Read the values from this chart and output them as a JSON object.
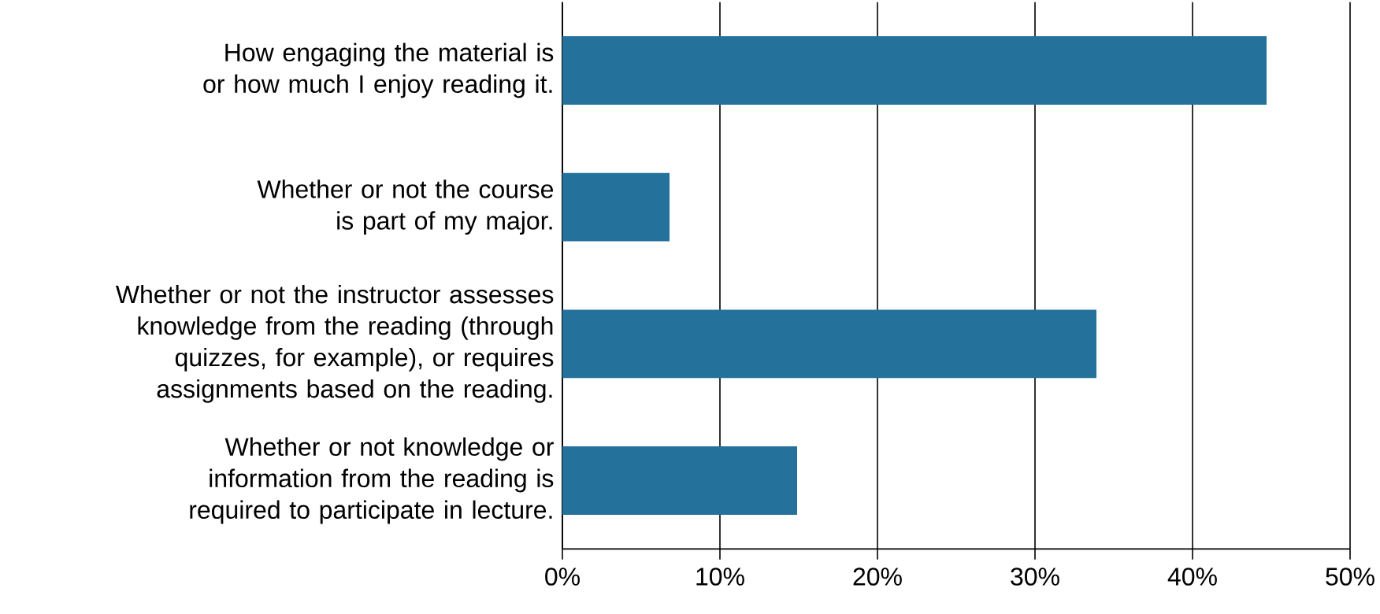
{
  "chart_data": {
    "type": "bar",
    "orientation": "horizontal",
    "categories": [
      "How engaging the material is or how much I enjoy reading it.",
      "Whether or not the course is part of my major.",
      "Whether or not the instructor assesses knowledge from the reading (through quizzes, for example), or requires assignments based on the reading.",
      "Whether or not knowledge or information from the reading is required to participate in lecture."
    ],
    "values": [
      44.7,
      6.8,
      33.9,
      14.9
    ],
    "color": "#24719c",
    "xlim": [
      0,
      50
    ],
    "xticks": [
      {
        "value": 0,
        "label": "0%"
      },
      {
        "value": 10,
        "label": "10%"
      },
      {
        "value": 20,
        "label": "20%"
      },
      {
        "value": 30,
        "label": "30%"
      },
      {
        "value": 40,
        "label": "40%"
      },
      {
        "value": 50,
        "label": "50%"
      }
    ],
    "grid": "x"
  }
}
